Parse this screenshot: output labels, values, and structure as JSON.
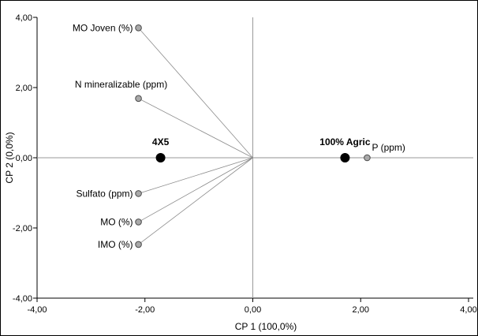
{
  "chart_data": {
    "type": "scatter",
    "subtype": "biplot",
    "title": "",
    "xlabel": "CP 1 (100,0%)",
    "ylabel": "CP 2 (0,0%)",
    "xlim": [
      -4,
      4
    ],
    "ylim": [
      -4,
      4
    ],
    "x_ticks": [
      -4,
      -2,
      0,
      2,
      4
    ],
    "y_ticks": [
      -4,
      -2,
      0,
      2,
      4
    ],
    "x_tick_labels": [
      "-4,00",
      "-2,00",
      "0,00",
      "2,00",
      "4,00"
    ],
    "y_tick_labels": [
      "-4,00",
      "-2,00",
      "0,00",
      "2,00",
      "4,00"
    ],
    "grid": false,
    "variables": [
      {
        "label": "MO Joven (%)",
        "x": -2.12,
        "y": 3.7,
        "label_anchor": "end"
      },
      {
        "label": "N mineralizable (ppm)",
        "x": -2.12,
        "y": 1.69,
        "label_anchor": "middle"
      },
      {
        "label": "Sulfato (ppm)",
        "x": -2.12,
        "y": -1.02,
        "label_anchor": "end"
      },
      {
        "label": "MO (%)",
        "x": -2.12,
        "y": -1.83,
        "label_anchor": "end"
      },
      {
        "label": "IMO (%)",
        "x": -2.12,
        "y": -2.47,
        "label_anchor": "end"
      },
      {
        "label": "P (ppm)",
        "x": 2.12,
        "y": 0.0,
        "label_anchor": "start"
      }
    ],
    "observations": [
      {
        "label": "4X5",
        "x": -1.71,
        "y": 0.0
      },
      {
        "label": "100% Agric",
        "x": 1.71,
        "y": 0.0
      }
    ],
    "colors": {
      "vector": "#8c8c8c",
      "variable_point": "#a9a9a9",
      "observation_point": "#000000",
      "zero_line": "#9a9a9a"
    }
  }
}
